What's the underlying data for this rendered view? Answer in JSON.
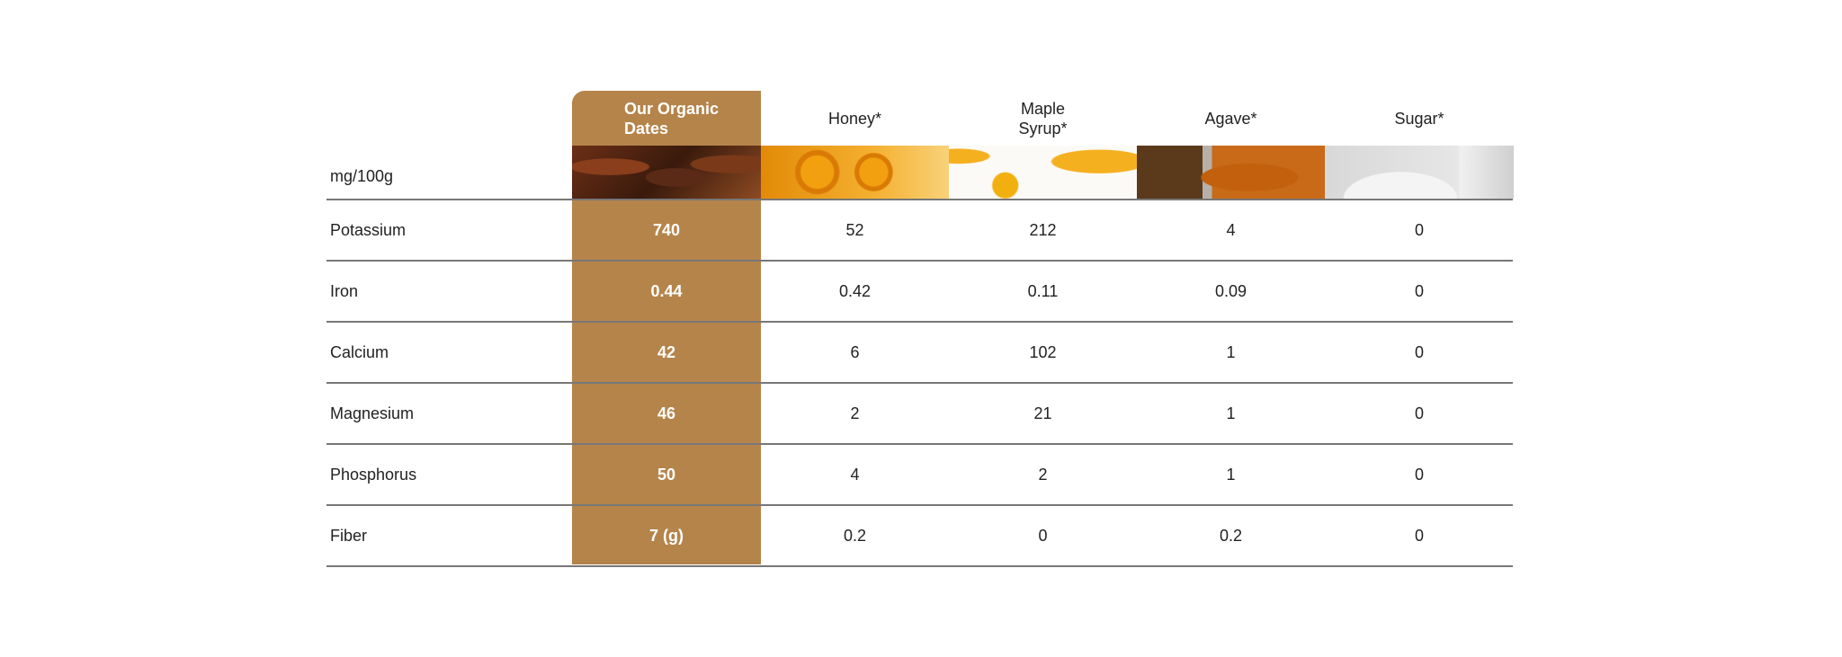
{
  "header": {
    "unit_label": "mg/100g",
    "columns": [
      "Our Organic Dates",
      "Honey*",
      "Maple Syrup*",
      "Agave*",
      "Sugar*"
    ]
  },
  "accent_color": "#b5844a",
  "images": [
    "dates-photo",
    "honeycomb-photo",
    "maple-syrup-photo",
    "agave-photo",
    "sugar-photo"
  ],
  "rows": [
    {
      "label": "Potassium",
      "values": [
        "740",
        "52",
        "212",
        "4",
        "0"
      ]
    },
    {
      "label": "Iron",
      "values": [
        "0.44",
        "0.42",
        "0.11",
        "0.09",
        "0"
      ]
    },
    {
      "label": "Calcium",
      "values": [
        "42",
        "6",
        "102",
        "1",
        "0"
      ]
    },
    {
      "label": "Magnesium",
      "values": [
        "46",
        "2",
        "21",
        "1",
        "0"
      ]
    },
    {
      "label": "Phosphorus",
      "values": [
        "50",
        "4",
        "2",
        "1",
        "0"
      ]
    },
    {
      "label": "Fiber",
      "values": [
        "7 (g)",
        "0.2",
        "0",
        "0.2",
        "0"
      ]
    }
  ]
}
